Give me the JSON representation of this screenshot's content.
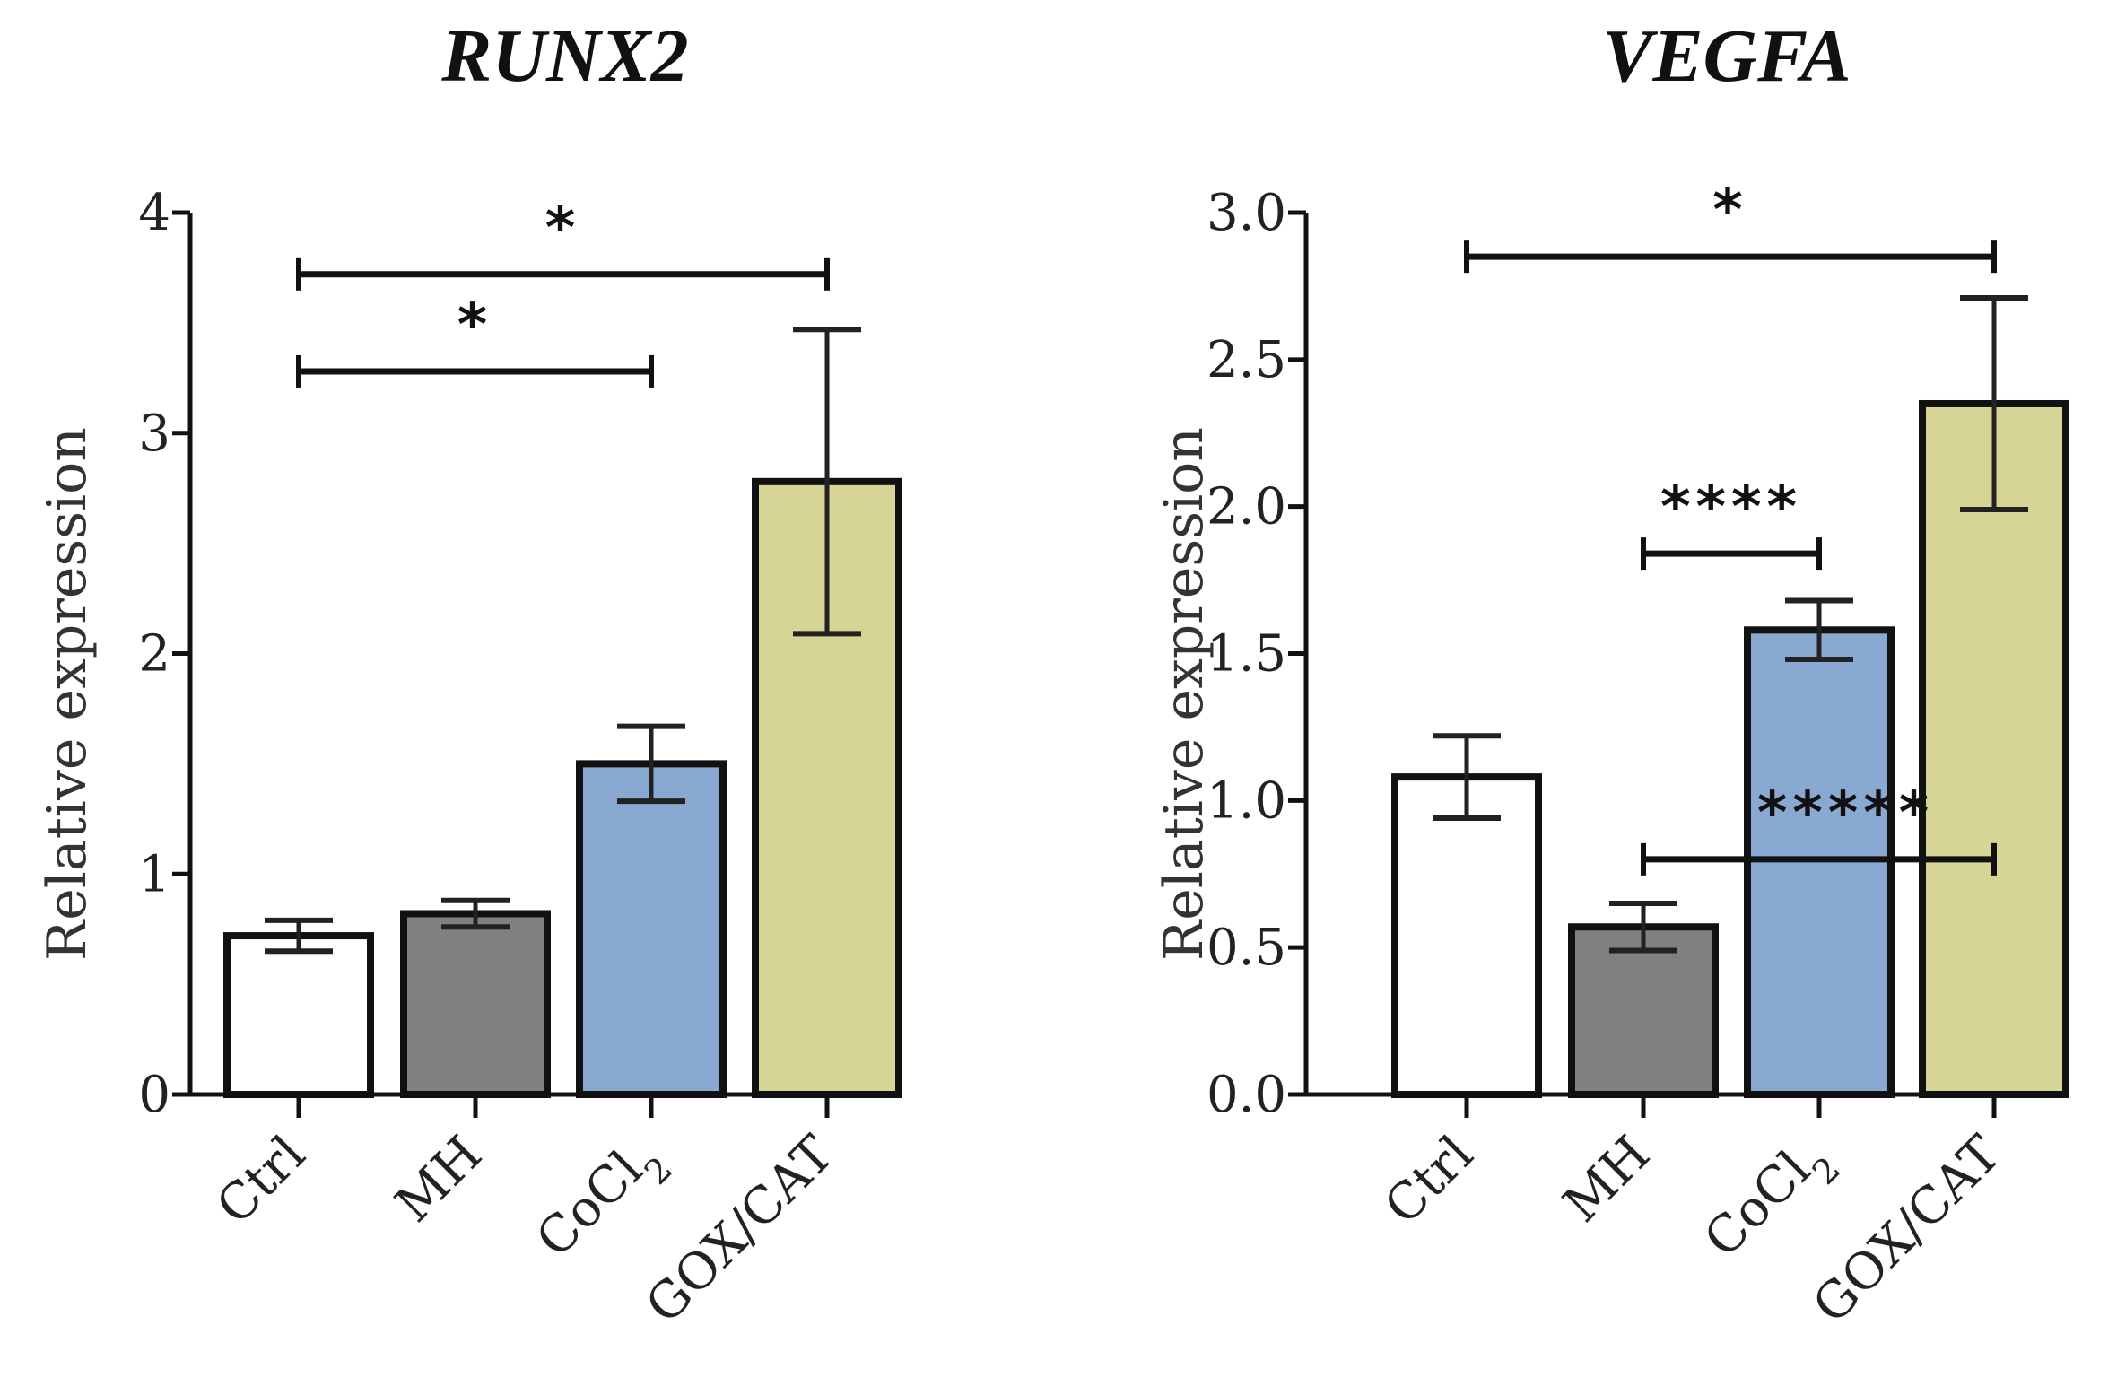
{
  "chart_data": [
    {
      "type": "bar",
      "title": "RUNX2",
      "ylabel": "Relative expression",
      "xlabel": "",
      "ylim": [
        0,
        4
      ],
      "yticks": [
        "0",
        "1",
        "2",
        "3",
        "4"
      ],
      "categories": [
        {
          "label": "Ctrl",
          "sub": ""
        },
        {
          "label": "MH",
          "sub": ""
        },
        {
          "label": "CoCl",
          "sub": "2"
        },
        {
          "label": "GOX/CAT",
          "sub": ""
        }
      ],
      "values": [
        0.72,
        0.82,
        1.5,
        2.78
      ],
      "errors": [
        0.07,
        0.06,
        0.17,
        0.69
      ],
      "colors": [
        "#ffffff",
        "#808080",
        "#8aa9d2",
        "#d6d596"
      ],
      "significance": [
        {
          "from": 0,
          "to": 3,
          "y": 3.72,
          "label": "*"
        },
        {
          "from": 0,
          "to": 2,
          "y": 3.28,
          "label": "*"
        }
      ]
    },
    {
      "type": "bar",
      "title": "VEGFA",
      "ylabel": "Relative expression",
      "xlabel": "",
      "ylim": [
        0,
        3.0
      ],
      "yticks": [
        "0.0",
        "0.5",
        "1.0",
        "1.5",
        "2.0",
        "2.5",
        "3.0"
      ],
      "categories": [
        {
          "label": "Ctrl",
          "sub": ""
        },
        {
          "label": "MH",
          "sub": ""
        },
        {
          "label": "CoCl",
          "sub": "2"
        },
        {
          "label": "GOX/CAT",
          "sub": ""
        }
      ],
      "values": [
        1.08,
        0.57,
        1.58,
        2.35
      ],
      "errors": [
        0.14,
        0.08,
        0.1,
        0.36
      ],
      "colors": [
        "#ffffff",
        "#808080",
        "#8aa9d2",
        "#d6d596"
      ],
      "significance": [
        {
          "from": 0,
          "to": 3,
          "y": 2.85,
          "label": "*"
        },
        {
          "from": 1,
          "to": 2,
          "y": 1.84,
          "label": "****"
        },
        {
          "from": 1,
          "to": 3,
          "y": 0.8,
          "label": "*****"
        }
      ]
    }
  ]
}
